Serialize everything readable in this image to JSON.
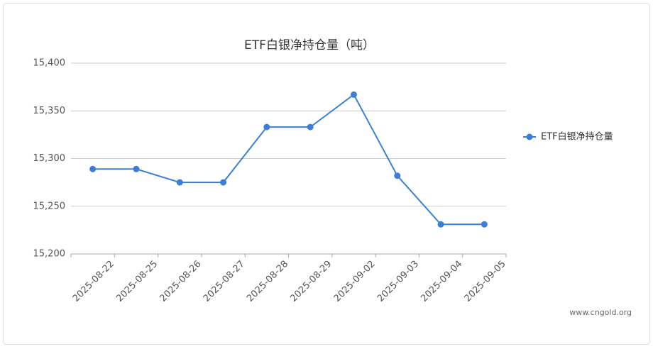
{
  "chart_data": {
    "type": "line",
    "title": "ETF白银净持仓量（吨）",
    "categories": [
      "2025-08-22",
      "2025-08-25",
      "2025-08-26",
      "2025-08-27",
      "2025-08-28",
      "2025-08-29",
      "2025-09-02",
      "2025-09-03",
      "2025-09-04",
      "2025-09-05"
    ],
    "series": [
      {
        "name": "ETF白银净持仓量",
        "color": "#3a7fd5",
        "values": [
          15289,
          15289,
          15275,
          15275,
          15333,
          15333,
          15367,
          15282,
          15231,
          15231
        ]
      }
    ],
    "ylim": [
      15200,
      15400
    ],
    "yticks": [
      {
        "value": 15200,
        "label": "15,200"
      },
      {
        "value": 15250,
        "label": "15,250"
      },
      {
        "value": 15300,
        "label": "15,300"
      },
      {
        "value": 15350,
        "label": "15,350"
      },
      {
        "value": 15400,
        "label": "15,400"
      }
    ],
    "grid": true,
    "legend_position": "right",
    "source": "www.cngold.org"
  }
}
